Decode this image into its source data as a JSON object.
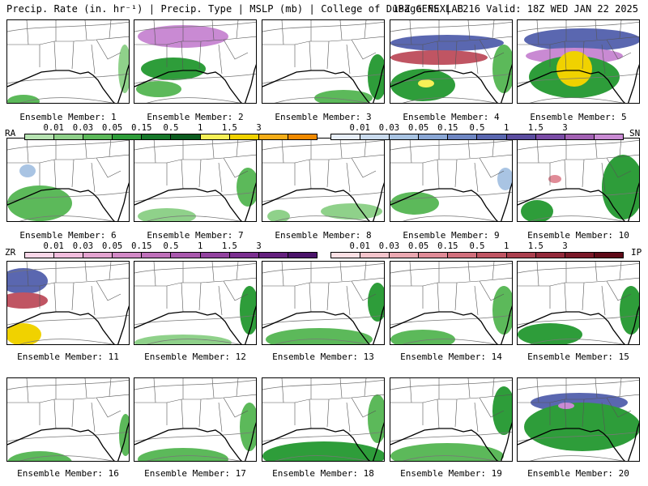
{
  "header": {
    "left": "Precip. Rate (in. hr⁻¹) | Precip. Type | MSLP (mb) | College of DuPage NEXLAB",
    "right": "18Z GEFS | F216 Valid: 18Z WED JAN 22 2025"
  },
  "members": [
    "Ensemble Member: 1",
    "Ensemble Member: 2",
    "Ensemble Member: 3",
    "Ensemble Member: 4",
    "Ensemble Member: 5",
    "Ensemble Member: 6",
    "Ensemble Member: 7",
    "Ensemble Member: 8",
    "Ensemble Member: 9",
    "Ensemble Member: 10",
    "Ensemble Member: 11",
    "Ensemble Member: 12",
    "Ensemble Member: 13",
    "Ensemble Member: 14",
    "Ensemble Member: 15",
    "Ensemble Member: 16",
    "Ensemble Member: 17",
    "Ensemble Member: 18",
    "Ensemble Member: 19",
    "Ensemble Member: 20"
  ],
  "legend_rain_snow": {
    "left_tag": "RA",
    "right_tag": "SN",
    "rain_ticks": [
      "0.01",
      "0.03",
      "0.05",
      "0.15",
      "0.5",
      "1",
      "1.5",
      "3"
    ],
    "snow_ticks": [
      "0.01",
      "0.03",
      "0.05",
      "0.15",
      "0.5",
      "1",
      "1.5",
      "3"
    ],
    "rain_colors": [
      "#b7e3b2",
      "#8fd18a",
      "#5cb95a",
      "#2e9d3a",
      "#16782a",
      "#0b5c1f",
      "#f7f056",
      "#f0d200",
      "#f4ad18",
      "#f08a00"
    ],
    "snow_colors": [
      "#e7eef8",
      "#cadbee",
      "#a9c4e3",
      "#8aa7d5",
      "#6f87c3",
      "#5a67b0",
      "#5b4da0",
      "#7a4ca6",
      "#a261b3",
      "#c98ad3"
    ]
  },
  "legend_ice": {
    "left_tag": "ZR",
    "right_tag": "IP",
    "zr_ticks": [
      "0.01",
      "0.03",
      "0.05",
      "0.15",
      "0.5",
      "1",
      "1.5",
      "3"
    ],
    "ip_ticks": [
      "0.01",
      "0.03",
      "0.05",
      "0.15",
      "0.5",
      "1",
      "1.5",
      "3"
    ],
    "zr_colors": [
      "#f9d7e8",
      "#f1bddd",
      "#e3a3d0",
      "#d289c6",
      "#bf70ba",
      "#a958ad",
      "#92429f",
      "#7b2f90",
      "#64207e",
      "#4b146a"
    ],
    "ip_colors": [
      "#fbe0e4",
      "#f4c5cc",
      "#eba8b1",
      "#e08b97",
      "#d16f7c",
      "#c05563",
      "#ab3f4e",
      "#93293a",
      "#7a1828",
      "#5f0a18"
    ]
  }
}
